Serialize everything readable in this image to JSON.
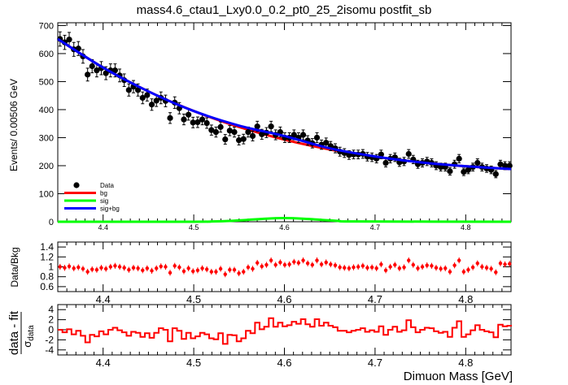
{
  "chart_data": [
    {
      "type": "scatter",
      "title": "mass4.6_ctau1_Lxy0.0_0.2_pt0_25_2isomu   postfit_sb",
      "ylabel": "Events/ 0.00506 GeV",
      "xlim": [
        4.35,
        4.85
      ],
      "ylim": [
        0,
        710
      ],
      "xticks": [
        "4.4",
        "4.5",
        "4.6",
        "4.7",
        "4.8"
      ],
      "yticks": [
        "0",
        "100",
        "200",
        "300",
        "400",
        "500",
        "600",
        "700"
      ],
      "legend_position": "bottom-left",
      "legend": [
        "Data",
        "bg",
        "sig",
        "sig+bg"
      ],
      "colors": {
        "data": "#000000",
        "bg": "#ff0000",
        "sig": "#00ff00",
        "sigbg": "#0000ff"
      },
      "series": [
        {
          "name": "Data",
          "x": [
            4.3525,
            4.3576,
            4.3626,
            4.3677,
            4.3727,
            4.3778,
            4.3829,
            4.3879,
            4.393,
            4.398,
            4.4031,
            4.4082,
            4.4132,
            4.4183,
            4.4233,
            4.4284,
            4.4335,
            4.4385,
            4.4436,
            4.4486,
            4.4537,
            4.4588,
            4.4638,
            4.4689,
            4.4739,
            4.479,
            4.4841,
            4.4891,
            4.4942,
            4.4992,
            4.5043,
            4.5094,
            4.5144,
            4.5195,
            4.5245,
            4.5296,
            4.5347,
            4.5397,
            4.5448,
            4.5498,
            4.5549,
            4.56,
            4.565,
            4.5701,
            4.5751,
            4.5802,
            4.5853,
            4.5903,
            4.5954,
            4.6004,
            4.6055,
            4.6106,
            4.6156,
            4.6207,
            4.6257,
            4.6308,
            4.6359,
            4.6409,
            4.646,
            4.651,
            4.6561,
            4.6612,
            4.6662,
            4.6713,
            4.6763,
            4.6814,
            4.6865,
            4.6915,
            4.6966,
            4.7016,
            4.7067,
            4.7118,
            4.7168,
            4.7219,
            4.7269,
            4.732,
            4.7371,
            4.7421,
            4.7472,
            4.7522,
            4.7573,
            4.7624,
            4.7674,
            4.7725,
            4.7775,
            4.7826,
            4.7877,
            4.7927,
            4.7978,
            4.8028,
            4.8079,
            4.813,
            4.818,
            4.8231,
            4.8281,
            4.8332,
            4.8383,
            4.8433,
            4.8484
          ],
          "values": [
            652,
            640,
            650,
            615,
            618,
            590,
            525,
            555,
            540,
            548,
            530,
            540,
            540,
            522,
            505,
            470,
            482,
            470,
            442,
            452,
            418,
            432,
            442,
            431,
            370,
            425,
            405,
            365,
            382,
            354,
            355,
            365,
            352,
            327,
            320,
            338,
            294,
            325,
            320,
            291,
            295,
            320,
            306,
            340,
            312,
            318,
            340,
            310,
            320,
            300,
            300,
            310,
            300,
            310,
            290,
            280,
            300,
            275,
            282,
            270,
            262,
            250,
            245,
            238,
            240,
            240,
            242,
            232,
            230,
            225,
            240,
            210,
            225,
            230,
            212,
            215,
            242,
            222,
            205,
            210,
            215,
            210,
            200,
            195,
            195,
            180,
            205,
            225,
            178,
            185,
            195,
            210,
            195,
            190,
            185,
            170,
            205,
            200,
            200
          ]
        },
        {
          "name": "bg",
          "x": [
            4.35,
            4.4,
            4.45,
            4.5,
            4.55,
            4.6,
            4.65,
            4.7,
            4.75,
            4.8,
            4.85
          ],
          "values": [
            652,
            550,
            465,
            395,
            338,
            293,
            258,
            232,
            212,
            198,
            188
          ]
        },
        {
          "name": "sig",
          "x": [
            4.35,
            4.5,
            4.52,
            4.54,
            4.56,
            4.58,
            4.6,
            4.62,
            4.64,
            4.66,
            4.68,
            4.85
          ],
          "values": [
            0,
            0,
            1,
            3,
            7,
            11,
            13,
            11,
            7,
            3,
            1,
            0
          ]
        },
        {
          "name": "sig+bg",
          "x": [
            4.35,
            4.4,
            4.45,
            4.5,
            4.55,
            4.6,
            4.65,
            4.7,
            4.75,
            4.8,
            4.85
          ],
          "values": [
            652,
            550,
            465,
            395,
            343,
            306,
            262,
            233,
            212,
            198,
            188
          ]
        }
      ]
    },
    {
      "type": "scatter",
      "ylabel": "Data/Bkg",
      "xlim": [
        4.35,
        4.85
      ],
      "ylim": [
        0.5,
        1.5
      ],
      "xticks": [
        "4.4",
        "4.5",
        "4.6",
        "4.7",
        "4.8"
      ],
      "yticks": [
        "0.6",
        "0.8",
        "1",
        "1.2",
        "1.4"
      ],
      "series": [
        {
          "name": "Data/Bkg",
          "values": [
            1.0,
            0.98,
            1.01,
            0.97,
            0.99,
            0.96,
            0.9,
            0.95,
            0.94,
            0.98,
            0.96,
            1.0,
            1.02,
            1.0,
            0.98,
            0.94,
            0.98,
            0.97,
            0.93,
            0.97,
            0.92,
            0.97,
            1.01,
            1.0,
            0.88,
            1.02,
            0.99,
            0.91,
            0.97,
            0.91,
            0.93,
            0.97,
            0.95,
            0.9,
            0.9,
            0.96,
            0.85,
            0.94,
            0.94,
            0.87,
            0.9,
            0.99,
            0.96,
            1.08,
            1.01,
            1.04,
            1.13,
            1.04,
            1.09,
            1.04,
            1.05,
            1.1,
            1.08,
            1.13,
            1.07,
            1.04,
            1.13,
            1.05,
            1.09,
            1.05,
            1.03,
            0.99,
            0.98,
            0.97,
            0.99,
            1.0,
            1.02,
            0.98,
            0.99,
            0.97,
            1.05,
            0.93,
            1.0,
            1.04,
            0.97,
            0.99,
            1.13,
            1.04,
            0.97,
            1.0,
            1.03,
            1.02,
            0.98,
            0.96,
            0.97,
            0.9,
            1.03,
            1.13,
            0.9,
            0.94,
            0.99,
            1.07,
            1.0,
            0.98,
            0.96,
            0.89,
            1.07,
            1.05,
            1.06
          ]
        }
      ]
    },
    {
      "type": "line",
      "ylabel": "data - fit / σ_data",
      "ylabel_parts": {
        "num": "data - fit",
        "den_symbol": "σ",
        "den_sub": "data"
      },
      "xlabel": "Dimuon Mass [GeV]",
      "xlim": [
        4.35,
        4.85
      ],
      "ylim": [
        -5,
        5
      ],
      "xticks": [
        "4.4",
        "4.5",
        "4.6",
        "4.7",
        "4.8"
      ],
      "yticks": [
        "-4",
        "-2",
        "0",
        "2",
        "4"
      ],
      "series": [
        {
          "name": "pull",
          "values": [
            0.0,
            -0.5,
            0.1,
            -0.9,
            -0.2,
            -1.2,
            -2.5,
            -1.0,
            -1.3,
            -0.3,
            -0.9,
            0.0,
            0.4,
            -0.1,
            -0.5,
            -1.2,
            -0.4,
            -0.6,
            -1.4,
            -0.7,
            -1.6,
            -0.6,
            0.3,
            0.0,
            -2.3,
            0.3,
            -0.2,
            -1.8,
            -0.6,
            -1.7,
            -1.3,
            -0.6,
            -0.9,
            -1.7,
            -1.9,
            -0.7,
            -2.8,
            -1.0,
            -1.1,
            -2.3,
            -1.7,
            -0.2,
            -0.7,
            1.4,
            0.1,
            0.6,
            2.3,
            0.6,
            1.4,
            0.7,
            0.9,
            1.6,
            1.2,
            2.1,
            1.1,
            0.6,
            2.1,
            0.8,
            1.4,
            0.8,
            0.5,
            -0.2,
            -0.2,
            -0.5,
            -0.2,
            0.0,
            0.3,
            -0.4,
            -0.1,
            -0.4,
            0.7,
            -1.0,
            0.0,
            0.6,
            -0.4,
            -0.1,
            1.9,
            0.5,
            -0.5,
            0.0,
            0.4,
            0.3,
            -0.3,
            -0.6,
            -0.4,
            -1.4,
            0.4,
            1.7,
            -1.4,
            -0.9,
            -0.1,
            0.9,
            0.0,
            -0.3,
            -0.5,
            -1.5,
            1.0,
            0.7,
            0.8
          ]
        }
      ]
    }
  ]
}
